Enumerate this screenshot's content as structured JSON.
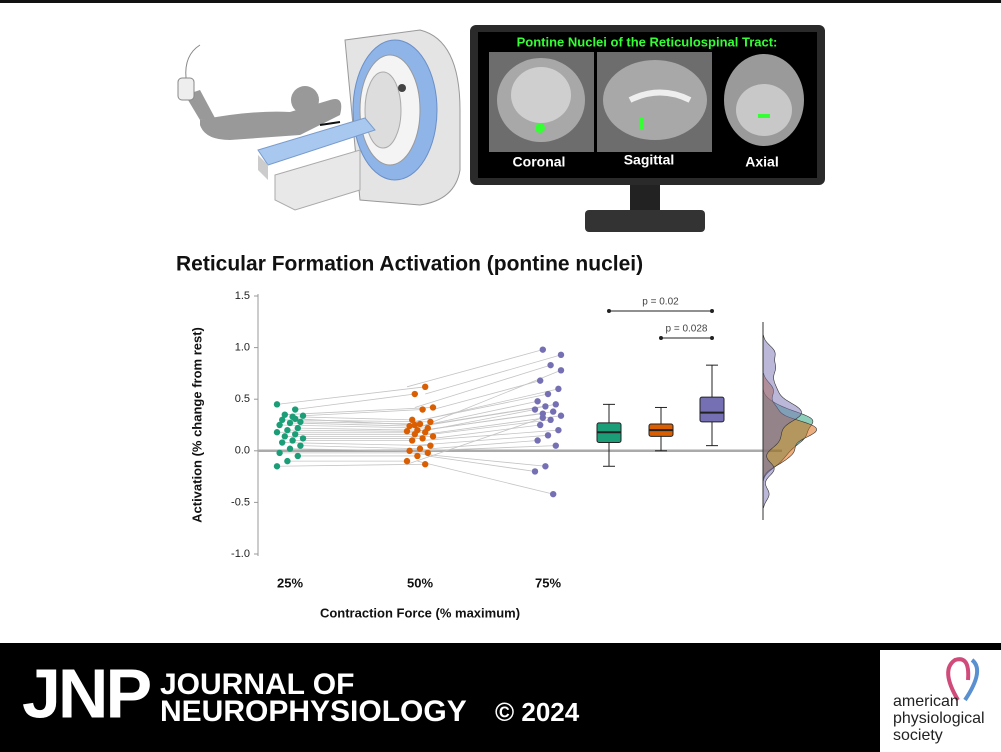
{
  "illustration": {
    "monitor_title": "Pontine Nuclei of the Reticulospinal Tract:",
    "views": [
      "Coronal",
      "Sagittal",
      "Axial"
    ]
  },
  "chart_data": {
    "type": "strip",
    "title": "Reticular Formation Activation (pontine nuclei)",
    "y_label": "Activation (% change from rest)",
    "x_label": "Contraction Force (% maximum)",
    "categories": [
      "25%",
      "50%",
      "75%"
    ],
    "ylim": [
      -1,
      1.5
    ],
    "yticks": [
      1.5,
      {
        "value": 1,
        "label": "1.0"
      },
      0.5,
      {
        "value": 0,
        "label": "0.0"
      },
      -0.5,
      {
        "value": -1,
        "label": "-1.0"
      }
    ],
    "series": [
      {
        "name": "25%",
        "color": "#1b9e77",
        "values": [
          0.45,
          0.4,
          0.35,
          0.34,
          0.33,
          0.3,
          0.28,
          0.27,
          0.25,
          0.22,
          0.2,
          0.18,
          0.16,
          0.14,
          0.12,
          0.1,
          0.08,
          0.05,
          0.02,
          -0.02,
          -0.05,
          -0.1,
          -0.15,
          0.31
        ]
      },
      {
        "name": "50%",
        "color": "#d95f02",
        "values": [
          0.62,
          0.55,
          0.42,
          0.4,
          0.3,
          0.28,
          0.26,
          0.24,
          0.22,
          0.2,
          0.19,
          0.18,
          0.16,
          0.14,
          0.12,
          0.1,
          0.05,
          0.02,
          0.0,
          -0.02,
          -0.05,
          -0.1,
          -0.13,
          0.25
        ]
      },
      {
        "name": "75%",
        "color": "#7570b3",
        "values": [
          0.98,
          0.93,
          0.83,
          0.68,
          0.6,
          0.55,
          0.48,
          0.45,
          0.43,
          0.4,
          0.38,
          0.36,
          0.34,
          0.3,
          0.25,
          0.2,
          0.15,
          0.1,
          0.05,
          -0.15,
          -0.2,
          -0.42,
          0.32,
          0.78
        ]
      }
    ],
    "boxes": [
      {
        "min": -0.15,
        "q1": 0.08,
        "median": 0.18,
        "q3": 0.27,
        "max": 0.45
      },
      {
        "min": 0.0,
        "q1": 0.14,
        "median": 0.2,
        "q3": 0.26,
        "max": 0.42
      },
      {
        "min": 0.05,
        "q1": 0.28,
        "median": 0.37,
        "q3": 0.52,
        "max": 0.83
      }
    ],
    "annotations": [
      "p = 0.02",
      "p = 0.028"
    ]
  },
  "footer": {
    "acronym": "JNP",
    "journal_line1": "JOURNAL OF",
    "journal_line2": "NEUROPHYSIOLOGY",
    "copyright": "© 2024",
    "society": [
      "american",
      "physiological",
      "society"
    ]
  }
}
